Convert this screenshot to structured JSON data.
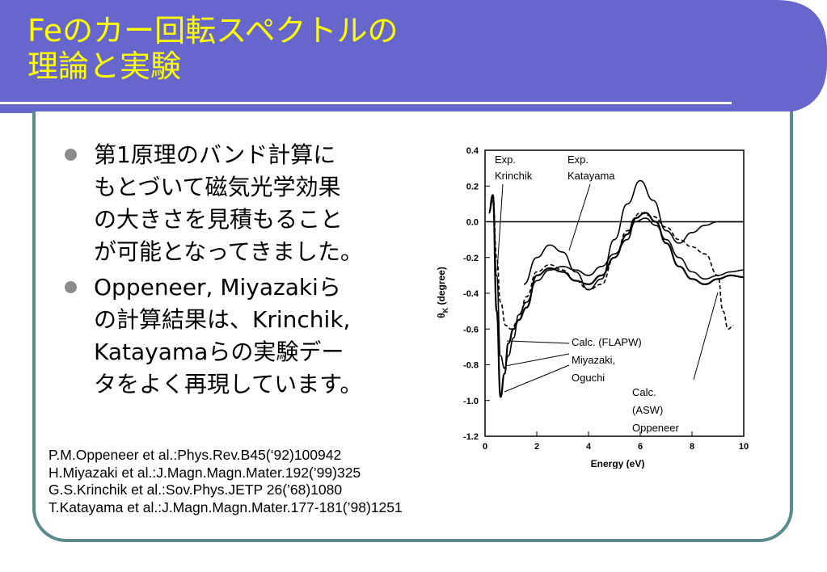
{
  "title": {
    "line1": "Feのカー回転スペクトルの",
    "line2": "理論と実験"
  },
  "bullets": [
    {
      "lines": [
        "第1原理のバンド計算に",
        "もとづいて磁気光学効果",
        "の大きさを見積もること",
        "が可能となってきました。"
      ]
    },
    {
      "lines": [
        "Oppeneer, Miyazakiら",
        "の計算結果は、Krinchik,",
        "Katayamaらの実験デー",
        "タをよく再現しています。"
      ]
    }
  ],
  "references": [
    "P.M.Oppeneer et al.:Phys.Rev.B45(‘92)100942",
    "H.Miyazaki et al.:J.Magn.Magn.Mater.192(’99)325",
    "G.S.Krinchik et al.:Sov.Phys.JETP 26(’68)1080",
    "T.Katayama et al.:J.Magn.Magn.Mater.177-181(’98)1251"
  ],
  "colors": {
    "title_bar": "#6666cc",
    "title_text": "#ffff00",
    "frame": "#5a8a8a",
    "bullet": "#8c8c8c"
  },
  "chart_data": {
    "type": "line",
    "xlabel": "Energy (eV)",
    "ylabel": "θ_K (degree)",
    "ylabel_main": "θ",
    "ylabel_sub": "K",
    "ylabel_unit": "(degree)",
    "xlim": [
      0,
      10
    ],
    "ylim": [
      -1.2,
      0.4
    ],
    "xticks": [
      "0",
      "2",
      "4",
      "6",
      "8",
      "10"
    ],
    "yticks": [
      "0.4",
      "0.2",
      "0.0",
      "-0.2",
      "-0.4",
      "-0.6",
      "-0.8",
      "-1.0",
      "-1.2"
    ],
    "annotations": {
      "exp_krinchik": [
        "Exp.",
        "Krinchik"
      ],
      "exp_katayama": [
        "Exp.",
        "Katayama"
      ],
      "calc_flapw": [
        "Calc. (FLAPW)",
        "Miyazaki,",
        "Oguchi"
      ],
      "calc_asw": [
        "Calc.",
        "(ASW)",
        "Oppeneer"
      ]
    },
    "series": [
      {
        "style": "solid",
        "x": [
          0.15,
          0.3,
          0.45,
          0.6,
          0.75,
          0.9,
          1.1,
          1.3,
          1.6,
          2,
          2.5,
          3,
          3.5,
          4,
          4.5,
          5,
          5.5,
          5.8,
          6.2,
          6.6,
          7,
          7.5,
          8,
          8.5,
          9,
          9.5,
          10
        ],
        "y": [
          0.05,
          0.12,
          -0.3,
          -0.75,
          -0.82,
          -0.75,
          -0.65,
          -0.52,
          -0.45,
          -0.33,
          -0.27,
          -0.25,
          -0.27,
          -0.3,
          -0.25,
          -0.18,
          -0.1,
          0.0,
          0.02,
          -0.02,
          -0.1,
          -0.2,
          -0.28,
          -0.32,
          -0.3,
          -0.28,
          -0.27
        ]
      },
      {
        "style": "solid",
        "x": [
          0.15,
          0.3,
          0.45,
          0.6,
          0.75,
          0.9,
          1.1,
          1.3,
          1.6,
          2,
          2.5,
          3,
          3.5,
          4,
          4.5,
          5,
          5.5,
          5.8,
          6.2,
          6.6,
          7,
          7.5,
          8,
          8.5,
          9,
          9.5,
          10
        ],
        "y": [
          0.05,
          0.15,
          -0.5,
          -0.98,
          -0.85,
          -0.68,
          -0.6,
          -0.55,
          -0.48,
          -0.3,
          -0.26,
          -0.28,
          -0.33,
          -0.35,
          -0.3,
          -0.2,
          -0.07,
          0.02,
          0.05,
          0.0,
          -0.12,
          -0.25,
          -0.32,
          -0.35,
          -0.32,
          -0.3,
          -0.31
        ]
      },
      {
        "style": "solid",
        "x": [
          1.5,
          2,
          2.5,
          3,
          3.5,
          4,
          4.5,
          5,
          5.5,
          6,
          6.5,
          7,
          7.5,
          8,
          8.5,
          9,
          9.5,
          10
        ],
        "y": [
          -0.35,
          -0.2,
          -0.13,
          -0.17,
          -0.28,
          -0.38,
          -0.32,
          -0.1,
          0.1,
          0.23,
          0.12,
          -0.05,
          -0.12,
          -0.06,
          -0.02,
          0.0,
          0.0,
          0.0
        ]
      },
      {
        "style": "dashed",
        "x": [
          0.15,
          0.3,
          0.45,
          0.6,
          0.8,
          1.0,
          1.3,
          1.6,
          2,
          2.5,
          3,
          3.5,
          4,
          4.5,
          5,
          5.5,
          6,
          6.5,
          7,
          7.5,
          8,
          8.5,
          9,
          9.2,
          9.4,
          9.6
        ],
        "y": [
          0.05,
          0.15,
          -0.2,
          -0.45,
          -0.58,
          -0.6,
          -0.55,
          -0.42,
          -0.28,
          -0.24,
          -0.27,
          -0.33,
          -0.38,
          -0.35,
          -0.2,
          -0.05,
          0.05,
          0.03,
          -0.03,
          -0.1,
          -0.14,
          -0.18,
          -0.3,
          -0.5,
          -0.6,
          -0.58
        ]
      }
    ]
  }
}
